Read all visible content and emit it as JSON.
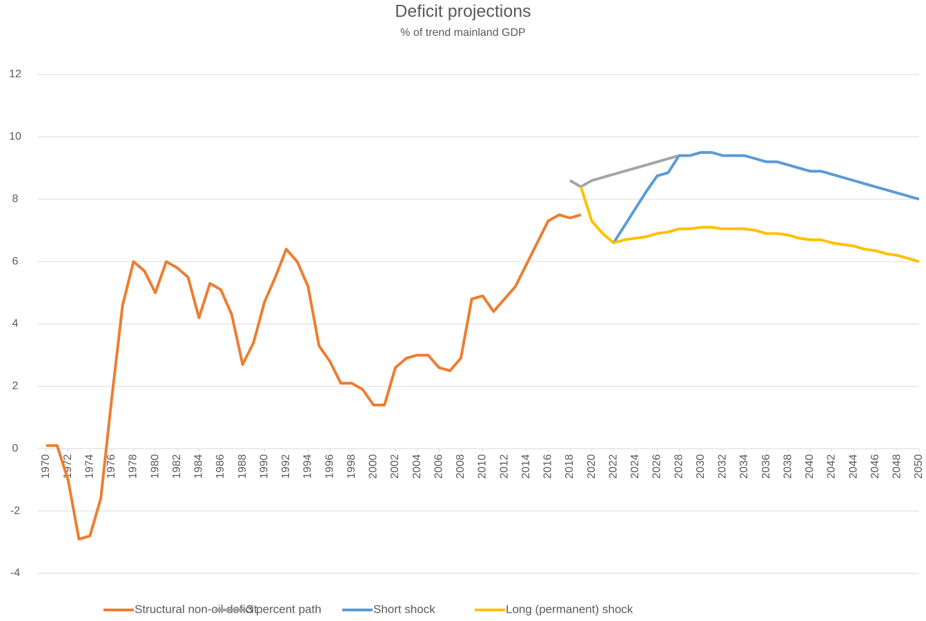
{
  "chart_data": {
    "type": "line",
    "title": "Deficit projections",
    "subtitle": "% of trend mainland GDP",
    "x": [
      1970,
      1971,
      1972,
      1973,
      1974,
      1975,
      1976,
      1977,
      1978,
      1979,
      1980,
      1981,
      1982,
      1983,
      1984,
      1985,
      1986,
      1987,
      1988,
      1989,
      1990,
      1991,
      1992,
      1993,
      1994,
      1995,
      1996,
      1997,
      1998,
      1999,
      2000,
      2001,
      2002,
      2003,
      2004,
      2005,
      2006,
      2007,
      2008,
      2009,
      2010,
      2011,
      2012,
      2013,
      2014,
      2015,
      2016,
      2017,
      2018,
      2019,
      2020,
      2021,
      2022,
      2023,
      2024,
      2025,
      2026,
      2027,
      2028,
      2029,
      2030,
      2031,
      2032,
      2033,
      2034,
      2035,
      2036,
      2037,
      2038,
      2039,
      2040,
      2041,
      2042,
      2043,
      2044,
      2045,
      2046,
      2047,
      2048,
      2049,
      2050
    ],
    "series": [
      {
        "name": "Structural non-oil deficit",
        "color": "#ed7d31",
        "values": [
          0.1,
          0.1,
          -1.0,
          -2.9,
          -2.8,
          -1.6,
          1.6,
          4.6,
          6.0,
          5.7,
          5.0,
          6.0,
          5.8,
          5.5,
          4.2,
          5.3,
          5.1,
          4.3,
          2.7,
          3.4,
          4.7,
          5.5,
          6.4,
          6.0,
          5.2,
          3.3,
          2.8,
          2.1,
          2.1,
          1.9,
          1.4,
          1.4,
          2.6,
          2.9,
          3.0,
          3.0,
          2.6,
          2.5,
          2.9,
          4.8,
          4.9,
          4.4,
          4.8,
          5.2,
          5.9,
          6.6,
          7.3,
          7.5,
          7.4,
          7.5,
          null,
          null,
          null,
          null,
          null,
          null,
          null,
          null,
          null,
          null,
          null,
          null,
          null,
          null,
          null,
          null,
          null,
          null,
          null,
          null,
          null,
          null,
          null,
          null,
          null,
          null,
          null,
          null,
          null,
          null,
          null
        ]
      },
      {
        "name": "3 percent path",
        "color": "#a5a5a5",
        "values": [
          null,
          null,
          null,
          null,
          null,
          null,
          null,
          null,
          null,
          null,
          null,
          null,
          null,
          null,
          null,
          null,
          null,
          null,
          null,
          null,
          null,
          null,
          null,
          null,
          null,
          null,
          null,
          null,
          null,
          null,
          null,
          null,
          null,
          null,
          null,
          null,
          null,
          null,
          null,
          null,
          null,
          null,
          null,
          null,
          null,
          null,
          null,
          null,
          8.6,
          8.4,
          8.6,
          8.7,
          8.8,
          8.9,
          9.0,
          9.1,
          9.2,
          9.3,
          9.4,
          null,
          null,
          null,
          null,
          null,
          null,
          null,
          null,
          null,
          null,
          null,
          null,
          null,
          null,
          null,
          null,
          null,
          null,
          null,
          null,
          null,
          null
        ]
      },
      {
        "name": "Short shock",
        "color": "#5b9bd5",
        "values": [
          null,
          null,
          null,
          null,
          null,
          null,
          null,
          null,
          null,
          null,
          null,
          null,
          null,
          null,
          null,
          null,
          null,
          null,
          null,
          null,
          null,
          null,
          null,
          null,
          null,
          null,
          null,
          null,
          null,
          null,
          null,
          null,
          null,
          null,
          null,
          null,
          null,
          null,
          null,
          null,
          null,
          null,
          null,
          null,
          null,
          null,
          null,
          null,
          null,
          null,
          null,
          null,
          6.6,
          7.15,
          7.7,
          8.25,
          8.75,
          8.85,
          9.4,
          9.4,
          9.5,
          9.5,
          9.4,
          9.4,
          9.4,
          9.3,
          9.2,
          9.2,
          9.1,
          9.0,
          8.9,
          8.9,
          8.8,
          8.7,
          8.6,
          8.5,
          8.4,
          8.3,
          8.2,
          8.1,
          8.0
        ]
      },
      {
        "name": "Long (permanent) shock",
        "color": "#ffc000",
        "values": [
          null,
          null,
          null,
          null,
          null,
          null,
          null,
          null,
          null,
          null,
          null,
          null,
          null,
          null,
          null,
          null,
          null,
          null,
          null,
          null,
          null,
          null,
          null,
          null,
          null,
          null,
          null,
          null,
          null,
          null,
          null,
          null,
          null,
          null,
          null,
          null,
          null,
          null,
          null,
          null,
          null,
          null,
          null,
          null,
          null,
          null,
          null,
          null,
          null,
          8.4,
          7.3,
          6.9,
          6.6,
          6.7,
          6.75,
          6.8,
          6.9,
          6.95,
          7.05,
          7.05,
          7.1,
          7.1,
          7.05,
          7.05,
          7.05,
          7.0,
          6.9,
          6.9,
          6.85,
          6.75,
          6.7,
          6.7,
          6.6,
          6.55,
          6.5,
          6.4,
          6.35,
          6.25,
          6.2,
          6.1,
          6.0
        ]
      }
    ],
    "xlim": [
      1970,
      2050
    ],
    "xticks": [
      1970,
      1972,
      1974,
      1976,
      1978,
      1980,
      1982,
      1984,
      1986,
      1988,
      1990,
      1992,
      1994,
      1996,
      1998,
      2000,
      2002,
      2004,
      2006,
      2008,
      2010,
      2012,
      2014,
      2016,
      2018,
      2020,
      2022,
      2024,
      2026,
      2028,
      2030,
      2032,
      2034,
      2036,
      2038,
      2040,
      2042,
      2044,
      2046,
      2048,
      2050
    ],
    "ylim": [
      -4,
      12
    ],
    "yticks": [
      -4,
      -2,
      0,
      2,
      4,
      6,
      8,
      10,
      12
    ],
    "grid": true,
    "legend": "bottom"
  }
}
